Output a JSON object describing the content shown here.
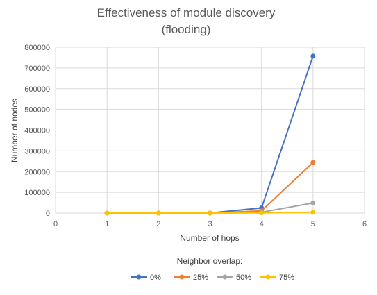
{
  "chart_data": {
    "type": "line",
    "title_lines": [
      "Effectiveness of module discovery",
      "(flooding)"
    ],
    "xlabel": "Number of hops",
    "ylabel": "Number of nodes",
    "xlim": [
      0,
      6
    ],
    "ylim": [
      0,
      800000
    ],
    "x_ticks": [
      0,
      1,
      2,
      3,
      4,
      5,
      6
    ],
    "y_ticks": [
      0,
      100000,
      200000,
      300000,
      400000,
      500000,
      600000,
      700000,
      800000
    ],
    "x_tick_labels": [
      "0",
      "1",
      "2",
      "3",
      "4",
      "5",
      "6"
    ],
    "y_tick_labels": [
      "0",
      "100000",
      "200000",
      "300000",
      "400000",
      "500000",
      "600000",
      "700000",
      "800000"
    ],
    "grid": "vertical and horizontal",
    "legend_title": "Neighbor overlap:",
    "legend_position": "bottom",
    "x": [
      1,
      2,
      3,
      4,
      5
    ],
    "series": [
      {
        "name": "0%",
        "color": "#4472c4",
        "values": [
          1,
          20,
          400,
          25000,
          757000
        ]
      },
      {
        "name": "25%",
        "color": "#ed7d31",
        "values": [
          1,
          15,
          300,
          11000,
          244000
        ]
      },
      {
        "name": "50%",
        "color": "#a5a5a5",
        "values": [
          1,
          10,
          200,
          4000,
          49000
        ]
      },
      {
        "name": "75%",
        "color": "#ffc000",
        "values": [
          1,
          5,
          100,
          1000,
          4000
        ]
      }
    ]
  }
}
